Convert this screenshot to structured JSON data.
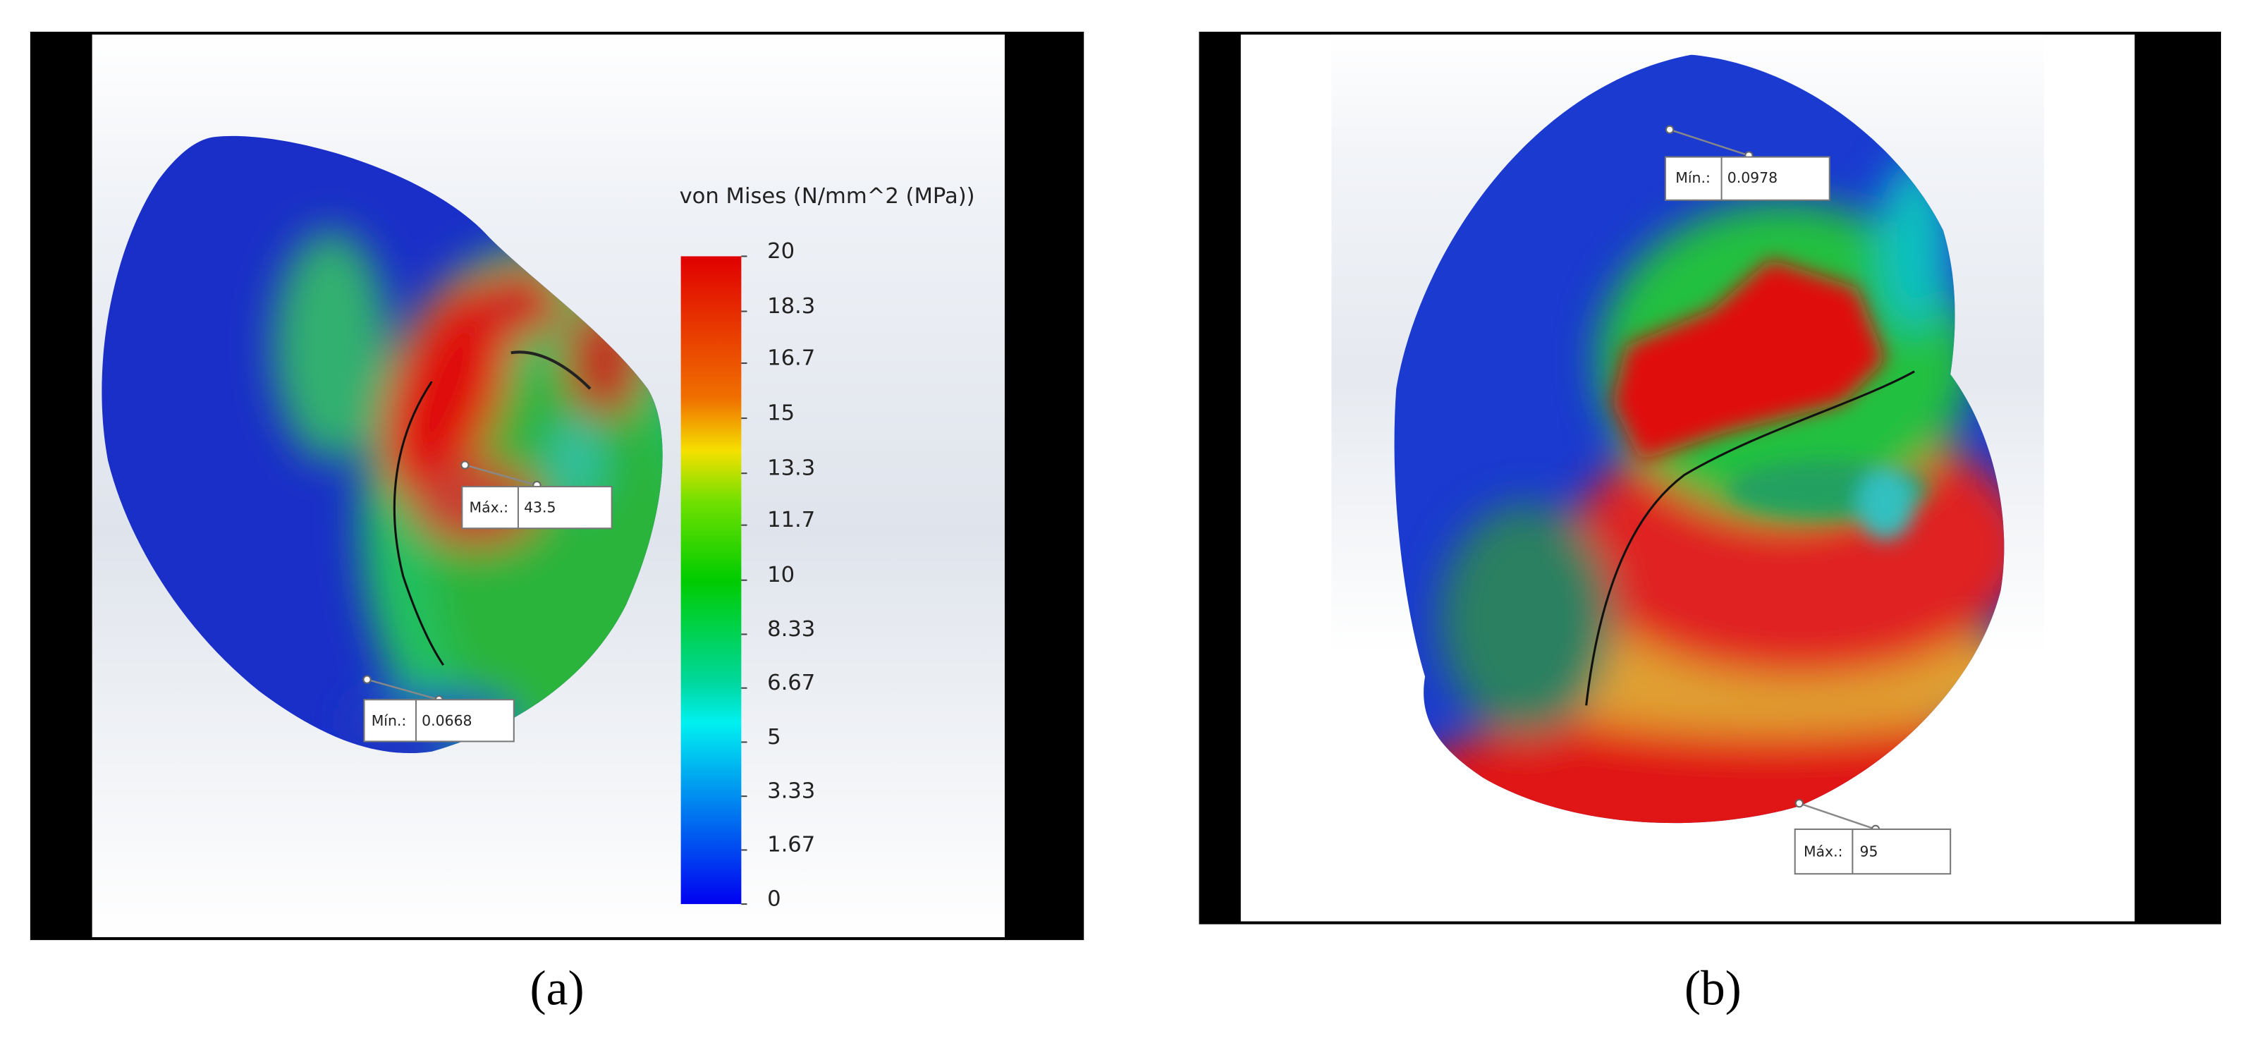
{
  "panels": [
    {
      "caption": "(a)",
      "colorbar": {
        "title": "von Mises (N/mm^2 (MPa))",
        "ticks": [
          20,
          18.3,
          16.7,
          15,
          13.3,
          11.7,
          10,
          8.33,
          6.67,
          5,
          3.33,
          1.67,
          0
        ]
      },
      "annotations": [
        {
          "label": "Máx.:",
          "value": 43.5
        },
        {
          "label": "Mín.:",
          "value": 0.0668
        }
      ]
    },
    {
      "caption": "(b)",
      "annotations": [
        {
          "label": "Mín.:",
          "value": 0.0978
        },
        {
          "label": "Máx.:",
          "value": 95
        }
      ]
    }
  ]
}
